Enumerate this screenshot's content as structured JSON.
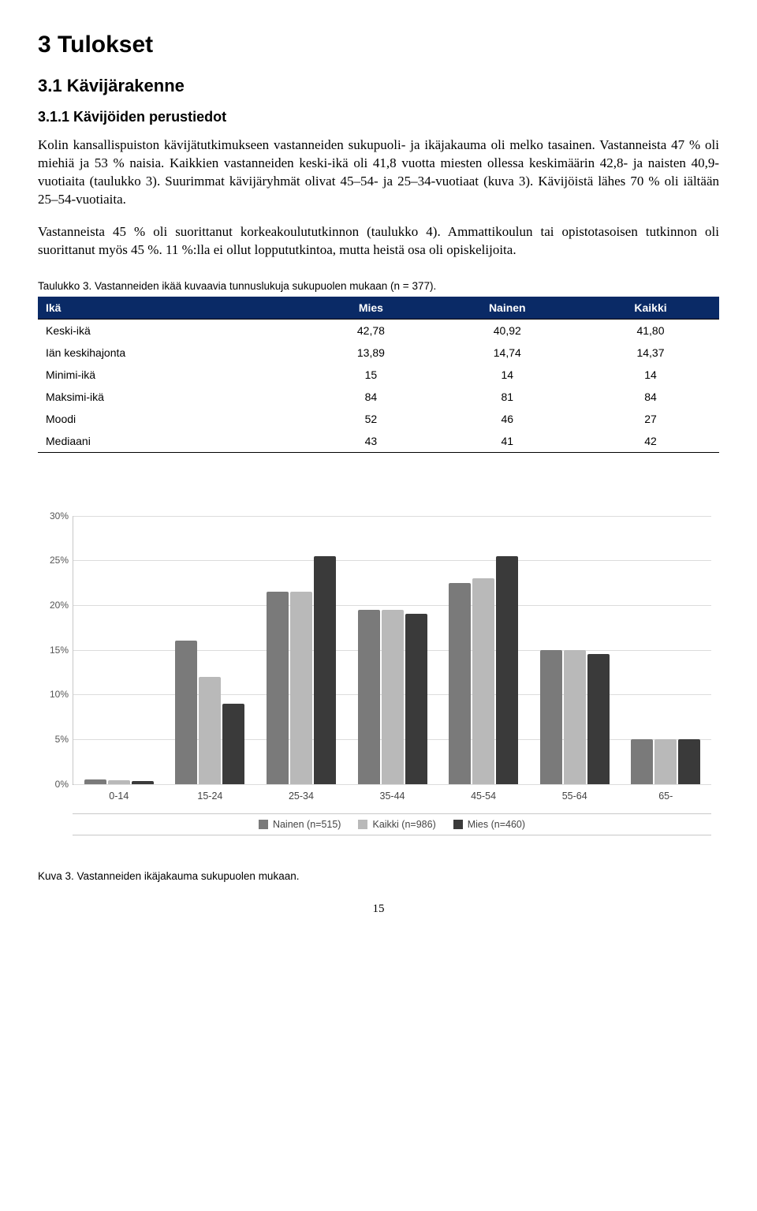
{
  "headings": {
    "h1": "3 Tulokset",
    "h2": "3.1 Kävijärakenne",
    "h3": "3.1.1 Kävijöiden perustiedot"
  },
  "paragraphs": {
    "p1": "Kolin kansallispuiston kävijätutkimukseen vastanneiden sukupuoli- ja ikäjakauma oli melko tasainen. Vastanneista 47 % oli miehiä ja 53 % naisia. Kaikkien vastanneiden keski-ikä oli 41,8 vuotta miesten ollessa keskimäärin 42,8- ja naisten 40,9-vuotiaita (taulukko 3). Suurimmat kävijäryhmät olivat 45–54- ja 25–34-vuotiaat (kuva 3). Kävijöistä lähes 70 % oli iältään 25–54-vuotiaita.",
    "p2": "Vastanneista 45 % oli suorittanut korkeakoulututkinnon (taulukko 4). Ammattikoulun tai opistotasoisen tutkinnon oli suorittanut myös 45 %. 11 %:lla ei ollut loppututkintoa, mutta heistä osa oli opiskelijoita."
  },
  "table": {
    "caption": "Taulukko 3. Vastanneiden ikää kuvaavia tunnuslukuja sukupuolen mukaan (n = 377).",
    "columns": [
      "Ikä",
      "Mies",
      "Nainen",
      "Kaikki"
    ],
    "rows": [
      [
        "Keski-ikä",
        "42,78",
        "40,92",
        "41,80"
      ],
      [
        "Iän keskihajonta",
        "13,89",
        "14,74",
        "14,37"
      ],
      [
        "Minimi-ikä",
        "15",
        "14",
        "14"
      ],
      [
        "Maksimi-ikä",
        "84",
        "81",
        "84"
      ],
      [
        "Moodi",
        "52",
        "46",
        "27"
      ],
      [
        "Mediaani",
        "43",
        "41",
        "42"
      ]
    ],
    "header_bg": "#0a2a66",
    "header_fg": "#ffffff"
  },
  "chart": {
    "type": "grouped-bar",
    "ymax": 30,
    "ytick_step": 5,
    "ytick_suffix": "%",
    "categories": [
      "0-14",
      "15-24",
      "25-34",
      "35-44",
      "45-54",
      "55-64",
      "65-"
    ],
    "series": [
      {
        "label": "Nainen (n=515)",
        "color": "#7a7a7a",
        "values": [
          0.5,
          16,
          21.5,
          19.5,
          22.5,
          15,
          5
        ]
      },
      {
        "label": "Kaikki (n=986)",
        "color": "#b9b9b9",
        "values": [
          0.4,
          12,
          21.5,
          19.5,
          23,
          15,
          5
        ]
      },
      {
        "label": "Mies (n=460)",
        "color": "#3a3a3a",
        "values": [
          0.3,
          9,
          25.5,
          19,
          25.5,
          14.5,
          5
        ]
      }
    ],
    "grid_color": "#dcdcdc",
    "axis_color": "#9a9a9a"
  },
  "figure_caption": "Kuva 3. Vastanneiden ikäjakauma sukupuolen mukaan.",
  "page_number": "15"
}
